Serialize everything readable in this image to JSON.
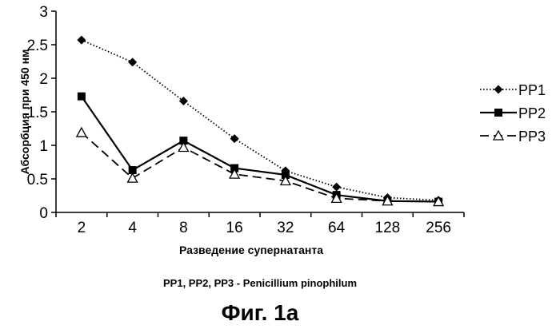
{
  "chart_data": {
    "type": "line",
    "categories": [
      "2",
      "4",
      "8",
      "16",
      "32",
      "64",
      "128",
      "256"
    ],
    "series": [
      {
        "name": "PP1",
        "values": [
          2.57,
          2.24,
          1.66,
          1.1,
          0.62,
          0.38,
          0.22,
          0.18
        ],
        "color": "#000000",
        "marker": "diamond",
        "line_style": "dotted"
      },
      {
        "name": "PP2",
        "values": [
          1.73,
          0.63,
          1.07,
          0.66,
          0.56,
          0.26,
          0.17,
          0.16
        ],
        "color": "#000000",
        "marker": "square",
        "line_style": "solid"
      },
      {
        "name": "PP3",
        "values": [
          1.19,
          0.51,
          0.97,
          0.57,
          0.47,
          0.21,
          0.17,
          0.16
        ],
        "color": "#000000",
        "marker": "triangle-open",
        "line_style": "dashed"
      }
    ],
    "y_ticks": [
      "0",
      "0.5",
      "1",
      "1.5",
      "2",
      "2.5",
      "3"
    ],
    "ylim": [
      0,
      3
    ],
    "xlabel": "Разведение супернатанта",
    "ylabel": "Абсорбция при 450 нм",
    "legend_position": "right",
    "grid": false
  },
  "caption": {
    "subtitle": "PP1, PP2, PP3 - Penicillium pinophilum",
    "figure_label": "Фиг. 1а"
  }
}
